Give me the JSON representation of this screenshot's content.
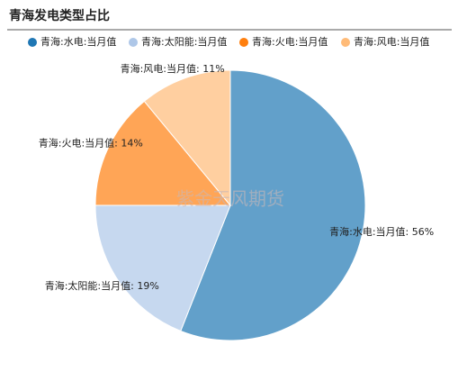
{
  "chart_data": {
    "type": "pie",
    "title": "青海发电类型占比",
    "categories": [
      "青海:水电:当月值",
      "青海:太阳能:当月值",
      "青海:火电:当月值",
      "青海:风电:当月值"
    ],
    "values": [
      56,
      19,
      14,
      11
    ],
    "value_labels": [
      "青海:水电:当月值: 56%",
      "青海:太阳能:当月值: 19%",
      "青海:火电:当月值: 14%",
      "青海:风电:当月值: 11%"
    ],
    "colors": [
      "#1f77b4",
      "#aec7e8",
      "#ff7f0e",
      "#ffbb78"
    ],
    "watermark": "紫金天风期货"
  }
}
